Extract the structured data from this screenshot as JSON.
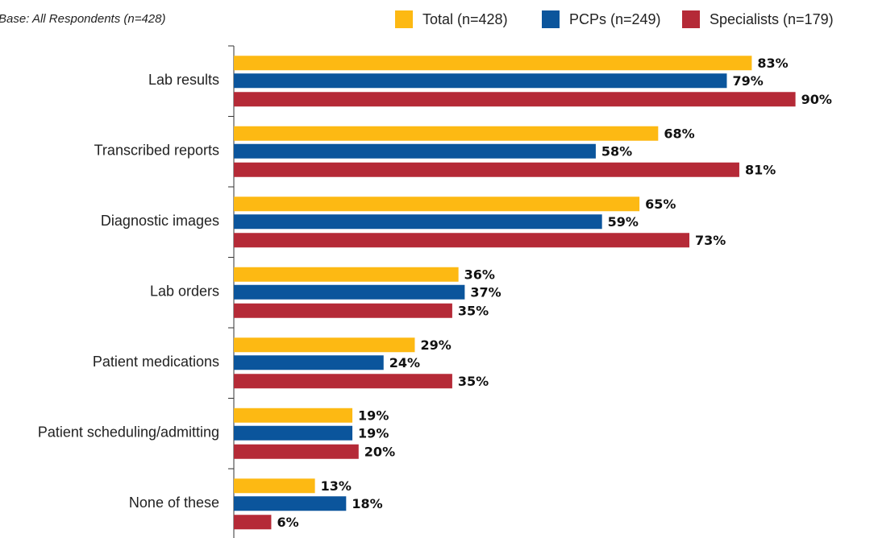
{
  "chart_data": {
    "type": "hbar",
    "subtitle": "Base: All Respondents (n=428)",
    "categories": [
      "Lab results",
      "Transcribed reports",
      "Diagnostic images",
      "Lab orders",
      "Patient medications",
      "Patient scheduling/admitting",
      "None of these"
    ],
    "series": [
      {
        "name": "Total (n=428)",
        "color": "#fdb913",
        "values": [
          83,
          68,
          65,
          36,
          29,
          19,
          13
        ],
        "value_labels": [
          "83%",
          "68%",
          "65%",
          "36%",
          "29%",
          "19%",
          "13%"
        ]
      },
      {
        "name": "PCPs (n=249)",
        "color": "#0b559c",
        "values": [
          79,
          58,
          59,
          37,
          24,
          19,
          18
        ],
        "value_labels": [
          "79%",
          "58%",
          "59%",
          "37%",
          "24%",
          "19%",
          "18%"
        ]
      },
      {
        "name": "Specialists (n=179)",
        "color": "#b52a37",
        "values": [
          90,
          81,
          73,
          35,
          35,
          20,
          6
        ],
        "value_labels": [
          "90%",
          "81%",
          "73%",
          "35%",
          "35%",
          "20%",
          "6%"
        ]
      }
    ],
    "xlim": [
      0,
      100
    ],
    "legend": "top-right"
  }
}
